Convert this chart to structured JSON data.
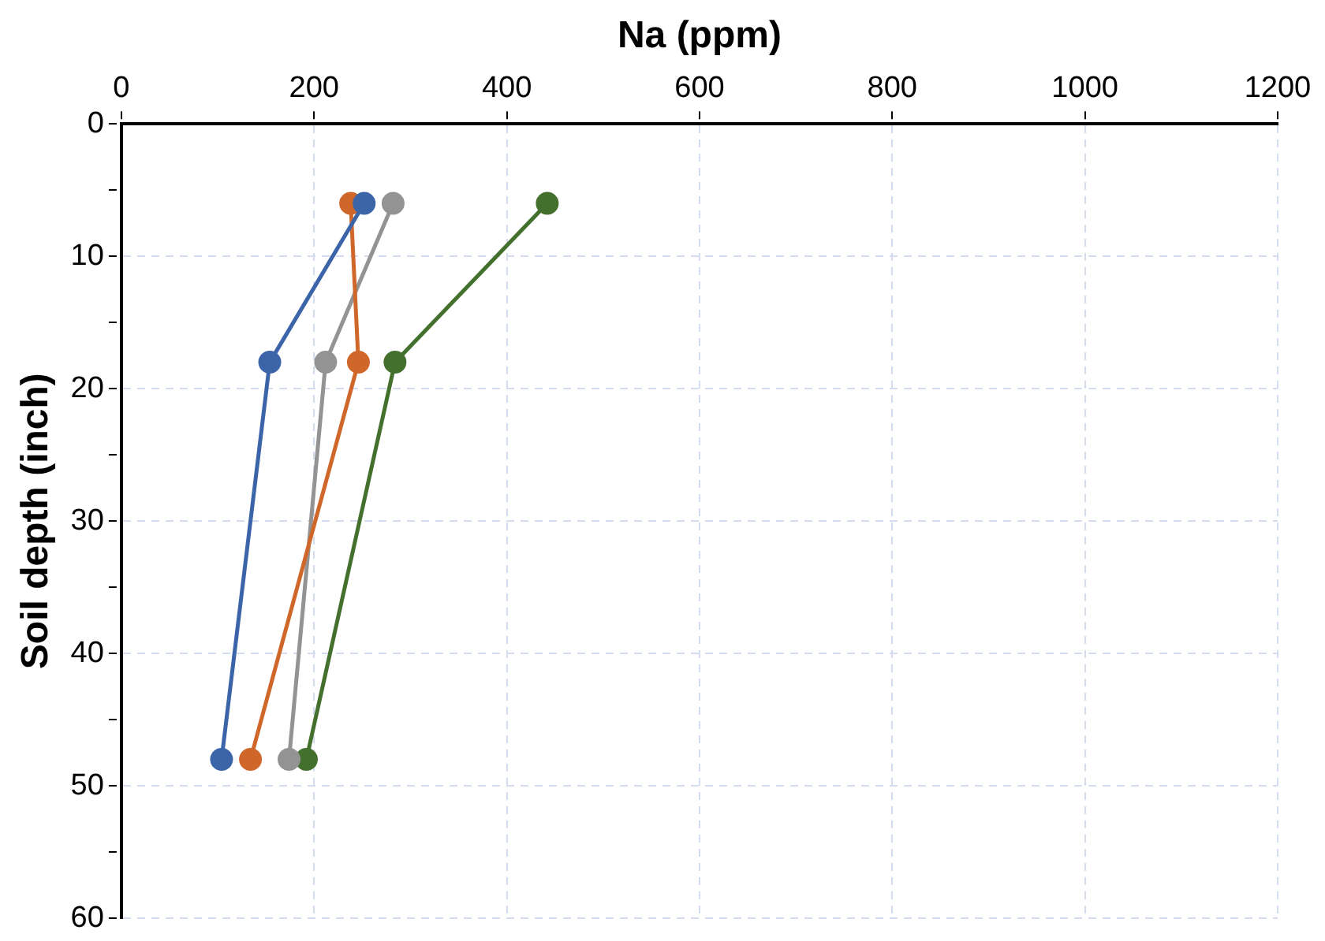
{
  "chart_data": {
    "type": "line",
    "xlabel": "Na (ppm)",
    "ylabel": "Soil depth (inch)",
    "series": [
      {
        "color": "#3c64a8",
        "x": [
          252,
          154,
          104
        ],
        "values": [
          6,
          18,
          48
        ]
      },
      {
        "color": "#d0672a",
        "x": [
          238,
          246,
          134
        ],
        "values": [
          6,
          18,
          48
        ]
      },
      {
        "color": "#939393",
        "x": [
          282,
          212,
          174
        ],
        "values": [
          6,
          18,
          48
        ]
      },
      {
        "color": "#44702e",
        "x": [
          442,
          284,
          192
        ],
        "values": [
          6,
          18,
          48
        ]
      }
    ],
    "xlim": [
      0,
      1200
    ],
    "xticks": [
      0,
      200,
      400,
      600,
      800,
      1000,
      1200
    ],
    "ylim": [
      60,
      0
    ],
    "yticks": [
      0,
      {
        "value": 5,
        "label": null
      },
      10,
      {
        "value": 15,
        "label": null
      },
      20,
      {
        "value": 25,
        "label": null
      },
      30,
      {
        "value": 35,
        "label": null
      },
      40,
      {
        "value": 45,
        "label": null
      },
      50,
      {
        "value": 55,
        "label": null
      },
      60
    ],
    "grid": true,
    "marker": "circle",
    "line_style": "solid",
    "legend": false
  }
}
